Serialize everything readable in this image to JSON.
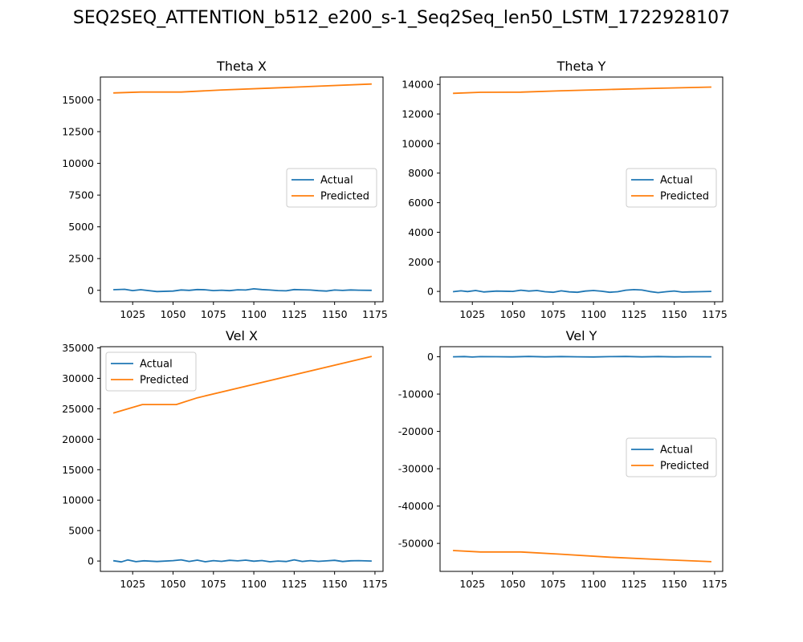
{
  "figure": {
    "title": "SEQ2SEQ_ATTENTION_b512_e200_s-1_Seq2Seq_len50_LSTM_1722928107"
  },
  "chart_data": [
    {
      "type": "line",
      "title": "Theta X",
      "xlim": [
        1005,
        1180
      ],
      "ylim": [
        -900,
        16800
      ],
      "xticks": [
        1025,
        1050,
        1075,
        1100,
        1125,
        1150,
        1175
      ],
      "yticks": [
        0,
        2500,
        5000,
        7500,
        10000,
        12500,
        15000
      ],
      "legend_position": "center-right",
      "series": [
        {
          "name": "Actual",
          "color": "#1f77b4",
          "x": [
            1013,
            1020,
            1025,
            1030,
            1040,
            1050,
            1055,
            1060,
            1065,
            1070,
            1075,
            1080,
            1085,
            1090,
            1095,
            1100,
            1105,
            1110,
            1115,
            1120,
            1125,
            1130,
            1135,
            1140,
            1145,
            1150,
            1155,
            1160,
            1165,
            1173
          ],
          "y": [
            50,
            80,
            -20,
            50,
            -100,
            -60,
            30,
            0,
            60,
            40,
            -20,
            10,
            -30,
            40,
            20,
            120,
            60,
            20,
            -20,
            -40,
            60,
            40,
            20,
            -30,
            -60,
            20,
            -10,
            30,
            10,
            0
          ]
        },
        {
          "name": "Predicted",
          "color": "#ff7f0e",
          "x": [
            1013,
            1030,
            1055,
            1080,
            1110,
            1140,
            1173
          ],
          "y": [
            15550,
            15620,
            15620,
            15780,
            15930,
            16080,
            16250
          ]
        }
      ]
    },
    {
      "type": "line",
      "title": "Theta Y",
      "xlim": [
        1005,
        1180
      ],
      "ylim": [
        -700,
        14500
      ],
      "xticks": [
        1025,
        1050,
        1075,
        1100,
        1125,
        1150,
        1175
      ],
      "yticks": [
        0,
        2000,
        4000,
        6000,
        8000,
        10000,
        12000,
        14000
      ],
      "legend_position": "center-right",
      "series": [
        {
          "name": "Actual",
          "color": "#1f77b4",
          "x": [
            1013,
            1018,
            1022,
            1027,
            1032,
            1040,
            1050,
            1055,
            1060,
            1065,
            1070,
            1075,
            1080,
            1085,
            1090,
            1095,
            1100,
            1105,
            1110,
            1115,
            1120,
            1125,
            1130,
            1135,
            1140,
            1145,
            1150,
            1155,
            1160,
            1165,
            1173
          ],
          "y": [
            -20,
            40,
            -10,
            60,
            -40,
            20,
            0,
            80,
            20,
            60,
            -20,
            -60,
            40,
            -30,
            -60,
            20,
            60,
            10,
            -60,
            -20,
            80,
            120,
            90,
            -10,
            -80,
            -20,
            30,
            -50,
            -30,
            -20,
            0
          ]
        },
        {
          "name": "Predicted",
          "color": "#ff7f0e",
          "x": [
            1013,
            1030,
            1055,
            1080,
            1110,
            1140,
            1173
          ],
          "y": [
            13400,
            13470,
            13480,
            13570,
            13660,
            13740,
            13820
          ]
        }
      ]
    },
    {
      "type": "line",
      "title": "Vel X",
      "xlim": [
        1005,
        1180
      ],
      "ylim": [
        -1700,
        35200
      ],
      "xticks": [
        1025,
        1050,
        1075,
        1100,
        1125,
        1150,
        1175
      ],
      "yticks": [
        0,
        5000,
        10000,
        15000,
        20000,
        25000,
        30000,
        35000
      ],
      "legend_position": "upper-left",
      "series": [
        {
          "name": "Actual",
          "color": "#1f77b4",
          "x": [
            1013,
            1018,
            1022,
            1027,
            1032,
            1040,
            1050,
            1055,
            1060,
            1065,
            1070,
            1075,
            1080,
            1085,
            1090,
            1095,
            1100,
            1105,
            1110,
            1115,
            1120,
            1125,
            1130,
            1135,
            1140,
            1145,
            1150,
            1155,
            1160,
            1165,
            1173
          ],
          "y": [
            50,
            -150,
            180,
            -100,
            40,
            -80,
            60,
            200,
            -60,
            150,
            -120,
            60,
            -50,
            120,
            30,
            150,
            -30,
            80,
            -120,
            0,
            -80,
            200,
            -60,
            60,
            -50,
            30,
            120,
            -80,
            40,
            60,
            0
          ]
        },
        {
          "name": "Predicted",
          "color": "#ff7f0e",
          "x": [
            1013,
            1031,
            1052,
            1065,
            1173
          ],
          "y": [
            24300,
            25700,
            25700,
            26800,
            33600
          ]
        }
      ]
    },
    {
      "type": "line",
      "title": "Vel Y",
      "xlim": [
        1005,
        1180
      ],
      "ylim": [
        -57500,
        2700
      ],
      "xticks": [
        1025,
        1050,
        1075,
        1100,
        1125,
        1150,
        1175
      ],
      "yticks": [
        0,
        -10000,
        -20000,
        -30000,
        -40000,
        -50000
      ],
      "legend_position": "center-right",
      "series": [
        {
          "name": "Actual",
          "color": "#1f77b4",
          "x": [
            1013,
            1020,
            1025,
            1030,
            1040,
            1050,
            1060,
            1070,
            1080,
            1090,
            1100,
            1110,
            1120,
            1130,
            1140,
            1150,
            1160,
            1173
          ],
          "y": [
            0,
            60,
            -80,
            40,
            20,
            -30,
            80,
            -40,
            60,
            0,
            -60,
            30,
            80,
            -20,
            50,
            -30,
            20,
            0
          ]
        },
        {
          "name": "Predicted",
          "color": "#ff7f0e",
          "x": [
            1013,
            1030,
            1055,
            1080,
            1110,
            1140,
            1173
          ],
          "y": [
            -51900,
            -52300,
            -52300,
            -52900,
            -53700,
            -54300,
            -54900
          ]
        }
      ]
    }
  ]
}
